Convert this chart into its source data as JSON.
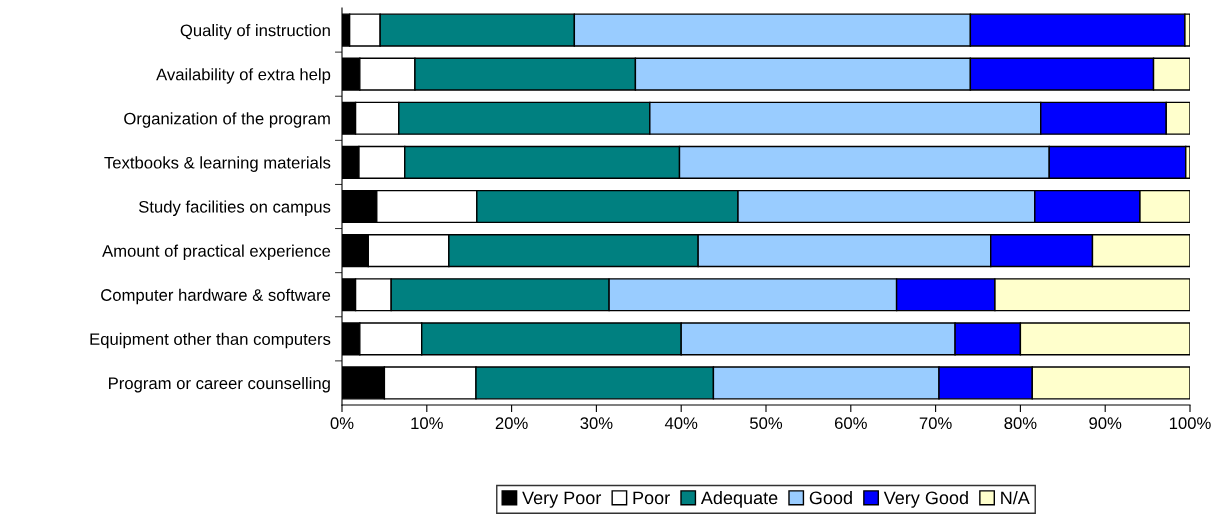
{
  "chart_data": {
    "type": "bar",
    "orientation": "horizontal",
    "stacked": true,
    "categories": [
      "Quality of instruction",
      "Availability of extra help",
      "Organization of the program",
      "Textbooks & learning materials",
      "Study facilities on campus",
      "Amount of practical experience",
      "Computer hardware & software",
      "Equipment other than computers",
      "Program or career counselling"
    ],
    "series": [
      {
        "name": "Very Poor",
        "color": "#000000",
        "values": [
          0.9,
          2.1,
          1.6,
          2.0,
          4.1,
          3.1,
          1.6,
          2.1,
          5.0
        ]
      },
      {
        "name": "Poor",
        "color": "#ffffff",
        "values": [
          3.6,
          6.5,
          5.1,
          5.4,
          11.8,
          9.5,
          4.2,
          7.3,
          10.8
        ]
      },
      {
        "name": "Adequate",
        "color": "#008080",
        "values": [
          22.9,
          26.0,
          29.6,
          32.4,
          30.8,
          29.4,
          25.7,
          30.6,
          28.0
        ]
      },
      {
        "name": "Good",
        "color": "#99ccff",
        "values": [
          46.7,
          39.5,
          46.1,
          43.6,
          35.0,
          34.5,
          33.9,
          32.3,
          26.6
        ]
      },
      {
        "name": "Very Good",
        "color": "#0000ff",
        "values": [
          25.3,
          21.6,
          14.8,
          16.1,
          12.4,
          12.0,
          11.6,
          7.7,
          11.0
        ]
      },
      {
        "name": "N/A",
        "color": "#ffffcc",
        "values": [
          0.6,
          4.3,
          2.8,
          0.5,
          5.9,
          11.5,
          23.0,
          20.0,
          18.6
        ]
      }
    ],
    "xlim": [
      0,
      100
    ],
    "xticks": [
      {
        "value": 0,
        "label": "0%"
      },
      {
        "value": 10,
        "label": "10%"
      },
      {
        "value": 20,
        "label": "20%"
      },
      {
        "value": 30,
        "label": "30%"
      },
      {
        "value": 40,
        "label": "40%"
      },
      {
        "value": 50,
        "label": "50%"
      },
      {
        "value": 60,
        "label": "60%"
      },
      {
        "value": 70,
        "label": "70%"
      },
      {
        "value": 80,
        "label": "80%"
      },
      {
        "value": 90,
        "label": "90%"
      },
      {
        "value": 100,
        "label": "100%"
      }
    ],
    "grid": false,
    "legend": "bottom"
  }
}
